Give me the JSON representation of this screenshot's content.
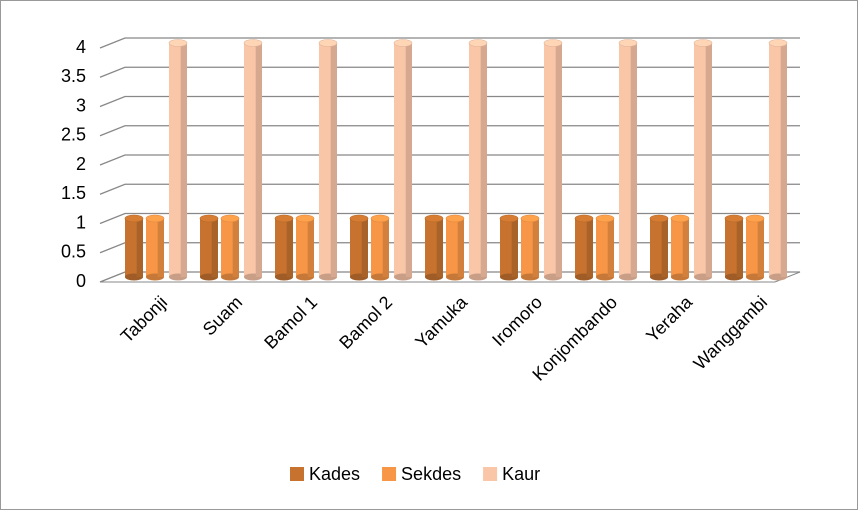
{
  "chart_data": {
    "type": "bar3d",
    "categories": [
      "Tabonji",
      "Suam",
      "Bamol 1",
      "Bamol 2",
      "Yamuka",
      "Iromoro",
      "Konjombando",
      "Yeraha",
      "Wanggambi"
    ],
    "series": [
      {
        "name": "Kades",
        "color": "#c7732f",
        "values": [
          1,
          1,
          1,
          1,
          1,
          1,
          1,
          1,
          1
        ]
      },
      {
        "name": "Sekdes",
        "color": "#f79646",
        "values": [
          1,
          1,
          1,
          1,
          1,
          1,
          1,
          1,
          1
        ]
      },
      {
        "name": "Kaur",
        "color": "#fac6a8",
        "values": [
          4,
          4,
          4,
          4,
          4,
          4,
          4,
          4,
          4
        ]
      }
    ],
    "ylim": [
      0,
      4
    ],
    "yticks": [
      0,
      0.5,
      1,
      1.5,
      2,
      2.5,
      3,
      3.5,
      4
    ],
    "grid": true,
    "legend": "bottom"
  }
}
